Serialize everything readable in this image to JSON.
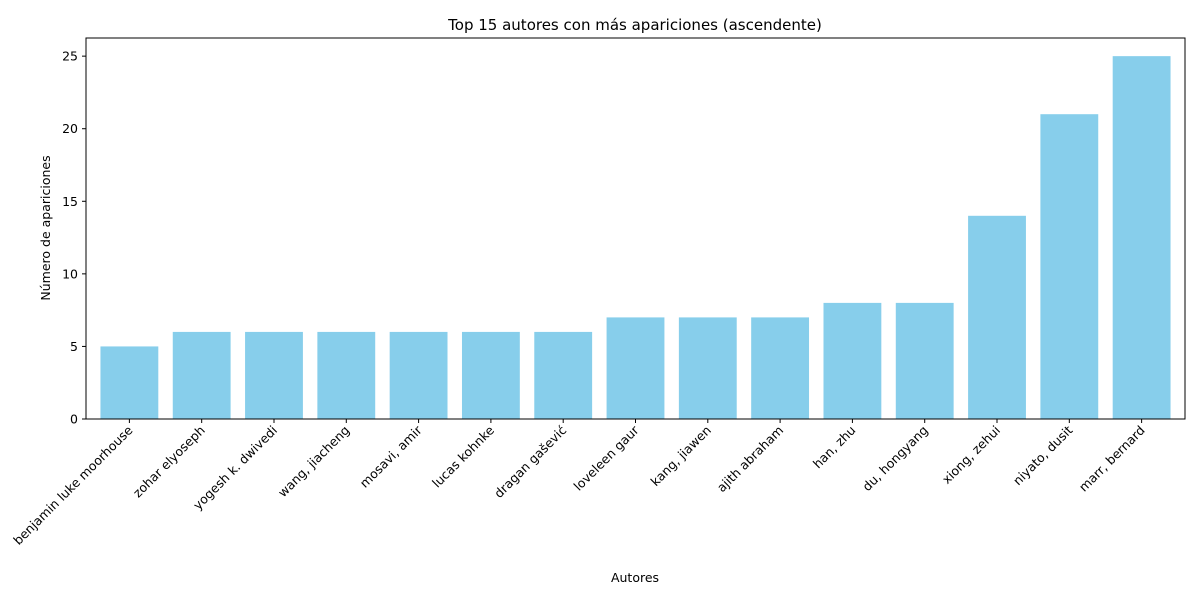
{
  "chart_data": {
    "type": "bar",
    "title": "Top 15 autores con más apariciones (ascendente)",
    "xlabel": "Autores",
    "ylabel": "Número de apariciones",
    "categories": [
      "benjamin luke moorhouse",
      "zohar elyoseph",
      "yogesh k. dwivedi",
      "wang, jiacheng",
      "mosavi, amir",
      "lucas kohnke",
      "dragan gašević",
      "loveleen gaur",
      "kang, jiawen",
      "ajith abraham",
      "han, zhu",
      "du, hongyang",
      "xiong, zehui",
      "niyato, dusit",
      "marr, bernard"
    ],
    "values": [
      5,
      6,
      6,
      6,
      6,
      6,
      6,
      7,
      7,
      7,
      8,
      8,
      14,
      21,
      25
    ],
    "ylim": [
      0,
      26.25
    ],
    "yticks": [
      0,
      5,
      10,
      15,
      20,
      25
    ],
    "bar_color": "#87ceeb",
    "grid": false,
    "legend": "none"
  }
}
